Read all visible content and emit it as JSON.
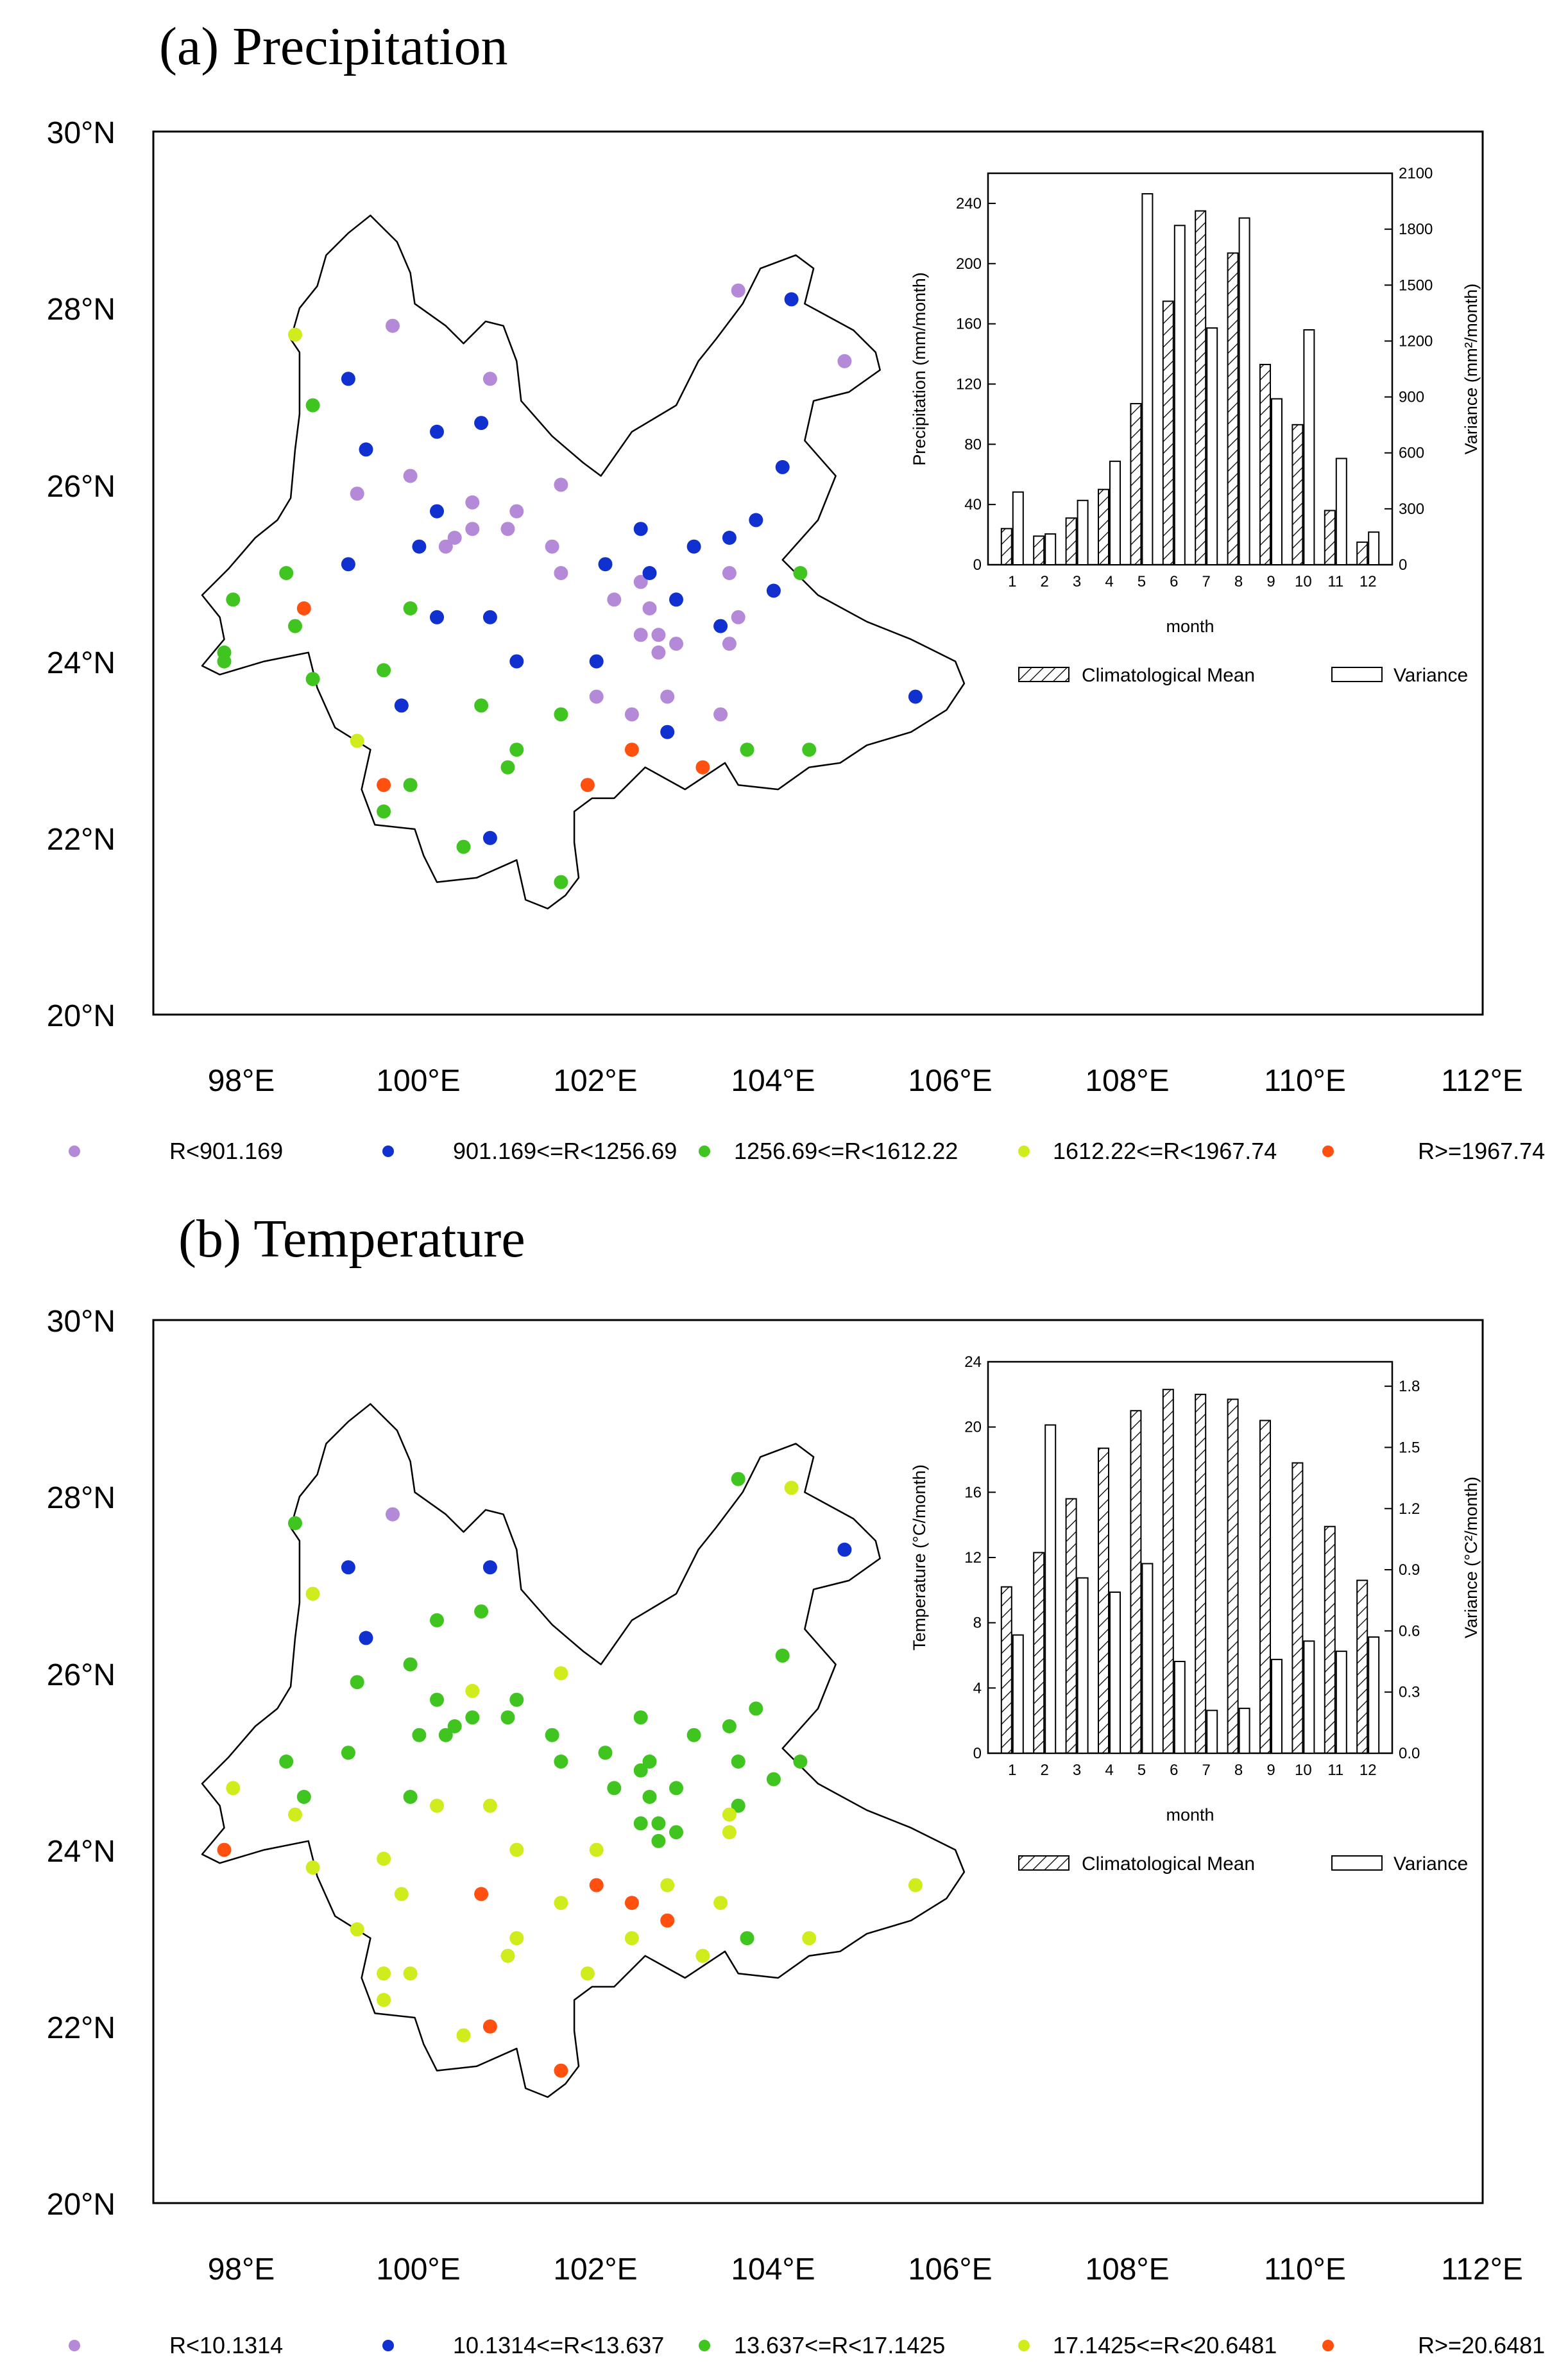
{
  "figure": {
    "colors": {
      "class1": "#b48ad8",
      "class2": "#1030d0",
      "class3": "#40c420",
      "class4": "#d0ec1c",
      "class5": "#ff5010"
    }
  },
  "chart_data": [
    {
      "type": "scatter",
      "title": "(a) Precipitation",
      "xlim": [
        97,
        112
      ],
      "ylim": [
        20,
        30
      ],
      "lon_ticks": [
        98,
        100,
        102,
        104,
        106,
        108,
        110,
        112
      ],
      "lon_tick_labels": [
        "98°E",
        "100°E",
        "102°E",
        "104°E",
        "106°E",
        "108°E",
        "110°E",
        "112°E"
      ],
      "lat_ticks": [
        20,
        22,
        24,
        26,
        28,
        30
      ],
      "lat_tick_labels": [
        "20°N",
        "22°N",
        "24°N",
        "26°N",
        "28°N",
        "30°N"
      ],
      "legend": [
        "R<901.169",
        "901.169<=R<1256.69",
        "1256.69<=R<1612.22",
        "1612.22<=R<1967.74",
        "R>=1967.74"
      ],
      "stations": [
        [
          99.7,
          27.8,
          0
        ],
        [
          100.8,
          27.2,
          0
        ],
        [
          104.8,
          27.4,
          0
        ],
        [
          103.6,
          28.2,
          0
        ],
        [
          99.3,
          25.9,
          0
        ],
        [
          99.9,
          26.1,
          0
        ],
        [
          100.6,
          25.8,
          0
        ],
        [
          100.6,
          25.5,
          0
        ],
        [
          100.4,
          25.4,
          0
        ],
        [
          100.3,
          25.3,
          0
        ],
        [
          100.2,
          24.5,
          0
        ],
        [
          101.0,
          25.5,
          0
        ],
        [
          101.1,
          25.7,
          0
        ],
        [
          101.5,
          25.3,
          0
        ],
        [
          101.6,
          25.0,
          0
        ],
        [
          101.6,
          26.0,
          0
        ],
        [
          102.2,
          24.7,
          0
        ],
        [
          102.5,
          24.9,
          0
        ],
        [
          102.6,
          24.6,
          0
        ],
        [
          102.5,
          24.3,
          0
        ],
        [
          102.7,
          24.3,
          0
        ],
        [
          102.7,
          24.1,
          0
        ],
        [
          102.9,
          24.2,
          0
        ],
        [
          103.5,
          25.0,
          0
        ],
        [
          103.6,
          24.5,
          0
        ],
        [
          103.5,
          24.2,
          0
        ],
        [
          102.0,
          23.6,
          0
        ],
        [
          102.4,
          23.4,
          0
        ],
        [
          102.8,
          23.6,
          0
        ],
        [
          103.4,
          23.4,
          0
        ],
        [
          104.2,
          28.1,
          1
        ],
        [
          99.2,
          27.2,
          1
        ],
        [
          99.4,
          26.4,
          1
        ],
        [
          100.2,
          26.6,
          1
        ],
        [
          100.7,
          26.7,
          1
        ],
        [
          100.0,
          25.3,
          1
        ],
        [
          100.2,
          25.7,
          1
        ],
        [
          99.2,
          25.1,
          1
        ],
        [
          100.2,
          24.5,
          1
        ],
        [
          100.8,
          24.5,
          1
        ],
        [
          101.1,
          24.0,
          1
        ],
        [
          102.1,
          25.1,
          1
        ],
        [
          102.5,
          25.5,
          1
        ],
        [
          102.6,
          25.0,
          1
        ],
        [
          102.9,
          24.7,
          1
        ],
        [
          103.1,
          25.3,
          1
        ],
        [
          103.5,
          25.4,
          1
        ],
        [
          103.8,
          25.6,
          1
        ],
        [
          104.1,
          26.2,
          1
        ],
        [
          104.0,
          24.8,
          1
        ],
        [
          103.4,
          24.4,
          1
        ],
        [
          102.0,
          24.0,
          1
        ],
        [
          99.8,
          23.5,
          1
        ],
        [
          102.8,
          23.2,
          1
        ],
        [
          100.8,
          22.0,
          1
        ],
        [
          105.6,
          23.6,
          1
        ],
        [
          98.8,
          26.9,
          2
        ],
        [
          97.9,
          24.7,
          2
        ],
        [
          98.5,
          25.0,
          2
        ],
        [
          98.6,
          24.4,
          2
        ],
        [
          97.8,
          24.1,
          2
        ],
        [
          97.8,
          24.0,
          2
        ],
        [
          98.8,
          23.8,
          2
        ],
        [
          99.9,
          24.6,
          2
        ],
        [
          99.6,
          23.9,
          2
        ],
        [
          100.7,
          23.5,
          2
        ],
        [
          101.1,
          23.0,
          2
        ],
        [
          101.0,
          22.8,
          2
        ],
        [
          101.6,
          23.4,
          2
        ],
        [
          99.6,
          22.3,
          2
        ],
        [
          99.9,
          22.6,
          2
        ],
        [
          100.5,
          21.9,
          2
        ],
        [
          101.6,
          21.5,
          2
        ],
        [
          103.7,
          23.0,
          2
        ],
        [
          104.4,
          23.0,
          2
        ],
        [
          104.3,
          25.0,
          2
        ],
        [
          98.6,
          27.7,
          3
        ],
        [
          99.3,
          23.1,
          3
        ],
        [
          98.7,
          24.6,
          4
        ],
        [
          99.6,
          22.6,
          4
        ],
        [
          101.9,
          22.6,
          4
        ],
        [
          102.4,
          23.0,
          4
        ],
        [
          103.2,
          22.8,
          4
        ]
      ],
      "inset": {
        "type": "bar",
        "xlabel": "month",
        "ylabel": "Precipitation (mm/month)",
        "y2label": "Variance (mm²/month)",
        "categories": [
          "1",
          "2",
          "3",
          "4",
          "5",
          "6",
          "7",
          "8",
          "9",
          "10",
          "11",
          "12"
        ],
        "ylim": [
          0,
          260
        ],
        "y_ticks": [
          0,
          40,
          80,
          120,
          160,
          200,
          240
        ],
        "y2lim": [
          0,
          2100
        ],
        "y2_ticks": [
          0,
          300,
          600,
          900,
          1200,
          1500,
          1800,
          2100
        ],
        "series": [
          {
            "name": "Climatological Mean",
            "axis": "left",
            "values": [
              24,
              19,
              31,
              50,
              107,
              175,
              235,
              207,
              133,
              93,
              36,
              15
            ]
          },
          {
            "name": "Variance",
            "axis": "right",
            "values": [
              390,
              165,
              345,
              555,
              1990,
              1820,
              1270,
              1860,
              890,
              1260,
              570,
              175
            ]
          }
        ]
      }
    },
    {
      "type": "scatter",
      "title": "(b) Temperature",
      "xlim": [
        97,
        112
      ],
      "ylim": [
        20,
        30
      ],
      "lon_ticks": [
        98,
        100,
        102,
        104,
        106,
        108,
        110,
        112
      ],
      "lon_tick_labels": [
        "98°E",
        "100°E",
        "102°E",
        "104°E",
        "106°E",
        "108°E",
        "110°E",
        "112°E"
      ],
      "lat_ticks": [
        20,
        22,
        24,
        26,
        28,
        30
      ],
      "lat_tick_labels": [
        "20°N",
        "22°N",
        "24°N",
        "26°N",
        "28°N",
        "30°N"
      ],
      "legend": [
        "R<10.1314",
        "10.1314<=R<13.637",
        "13.637<=R<17.1425",
        "17.1425<=R<20.6481",
        "R>=20.6481"
      ],
      "stations": [
        [
          99.7,
          27.8,
          0
        ],
        [
          99.2,
          27.2,
          1
        ],
        [
          99.4,
          26.4,
          1
        ],
        [
          100.8,
          27.2,
          1
        ],
        [
          104.8,
          27.4,
          1
        ],
        [
          98.6,
          27.7,
          2
        ],
        [
          103.6,
          28.2,
          2
        ],
        [
          100.2,
          26.6,
          2
        ],
        [
          100.7,
          26.7,
          2
        ],
        [
          99.9,
          26.1,
          2
        ],
        [
          99.3,
          25.9,
          2
        ],
        [
          100.0,
          25.3,
          2
        ],
        [
          100.2,
          25.7,
          2
        ],
        [
          100.4,
          25.4,
          2
        ],
        [
          100.3,
          25.3,
          2
        ],
        [
          100.6,
          25.5,
          2
        ],
        [
          101.0,
          25.5,
          2
        ],
        [
          101.1,
          25.7,
          2
        ],
        [
          101.5,
          25.3,
          2
        ],
        [
          101.6,
          25.0,
          2
        ],
        [
          99.2,
          25.1,
          2
        ],
        [
          98.5,
          25.0,
          2
        ],
        [
          98.7,
          24.6,
          2
        ],
        [
          99.9,
          24.6,
          2
        ],
        [
          102.1,
          25.1,
          2
        ],
        [
          102.5,
          25.5,
          2
        ],
        [
          102.6,
          25.0,
          2
        ],
        [
          102.5,
          24.9,
          2
        ],
        [
          102.2,
          24.7,
          2
        ],
        [
          102.6,
          24.6,
          2
        ],
        [
          102.5,
          24.3,
          2
        ],
        [
          102.7,
          24.3,
          2
        ],
        [
          102.7,
          24.1,
          2
        ],
        [
          102.9,
          24.2,
          2
        ],
        [
          102.9,
          24.7,
          2
        ],
        [
          103.1,
          25.3,
          2
        ],
        [
          103.5,
          25.4,
          2
        ],
        [
          103.8,
          25.6,
          2
        ],
        [
          103.6,
          25.0,
          2
        ],
        [
          103.6,
          24.5,
          2
        ],
        [
          104.1,
          26.2,
          2
        ],
        [
          104.0,
          24.8,
          2
        ],
        [
          104.3,
          25.0,
          2
        ],
        [
          103.7,
          23.0,
          2
        ],
        [
          104.2,
          28.1,
          3
        ],
        [
          98.8,
          26.9,
          3
        ],
        [
          97.9,
          24.7,
          3
        ],
        [
          101.6,
          26.0,
          3
        ],
        [
          100.2,
          24.5,
          3
        ],
        [
          100.6,
          25.8,
          3
        ],
        [
          100.8,
          24.5,
          3
        ],
        [
          98.6,
          24.4,
          3
        ],
        [
          98.8,
          23.8,
          3
        ],
        [
          99.6,
          23.9,
          3
        ],
        [
          99.8,
          23.5,
          3
        ],
        [
          101.1,
          24.0,
          3
        ],
        [
          101.6,
          23.4,
          3
        ],
        [
          102.0,
          24.0,
          3
        ],
        [
          103.5,
          24.4,
          3
        ],
        [
          103.5,
          24.2,
          3
        ],
        [
          102.8,
          23.6,
          3
        ],
        [
          103.4,
          23.4,
          3
        ],
        [
          102.4,
          23.0,
          3
        ],
        [
          103.2,
          22.8,
          3
        ],
        [
          104.4,
          23.0,
          3
        ],
        [
          105.6,
          23.6,
          3
        ],
        [
          99.3,
          23.1,
          3
        ],
        [
          101.1,
          23.0,
          3
        ],
        [
          101.0,
          22.8,
          3
        ],
        [
          99.6,
          22.6,
          3
        ],
        [
          99.6,
          22.3,
          3
        ],
        [
          99.9,
          22.6,
          3
        ],
        [
          101.9,
          22.6,
          3
        ],
        [
          100.5,
          21.9,
          3
        ],
        [
          97.8,
          24.0,
          4
        ],
        [
          102.0,
          23.6,
          4
        ],
        [
          102.4,
          23.4,
          4
        ],
        [
          102.8,
          23.2,
          4
        ],
        [
          100.7,
          23.5,
          4
        ],
        [
          100.8,
          22.0,
          4
        ],
        [
          101.6,
          21.5,
          4
        ]
      ],
      "inset": {
        "type": "bar",
        "xlabel": "month",
        "ylabel": "Temperature (°C/month)",
        "y2label": "Variance (°C²/month)",
        "categories": [
          "1",
          "2",
          "3",
          "4",
          "5",
          "6",
          "7",
          "8",
          "9",
          "10",
          "11",
          "12"
        ],
        "ylim": [
          0,
          24
        ],
        "y_ticks": [
          0,
          4,
          8,
          12,
          16,
          20,
          24
        ],
        "y2lim": [
          0,
          1.92
        ],
        "y2_ticks": [
          0.0,
          0.3,
          0.6,
          0.9,
          1.2,
          1.5,
          1.8
        ],
        "series": [
          {
            "name": "Climatological Mean",
            "axis": "left",
            "values": [
              10.2,
              12.3,
              15.6,
              18.7,
              21.0,
              22.3,
              22.0,
              21.7,
              20.4,
              17.8,
              13.9,
              10.6
            ]
          },
          {
            "name": "Variance",
            "axis": "right",
            "values": [
              0.58,
              1.61,
              0.86,
              0.79,
              0.93,
              0.45,
              0.21,
              0.22,
              0.46,
              0.55,
              0.5,
              0.57
            ]
          }
        ]
      }
    }
  ]
}
